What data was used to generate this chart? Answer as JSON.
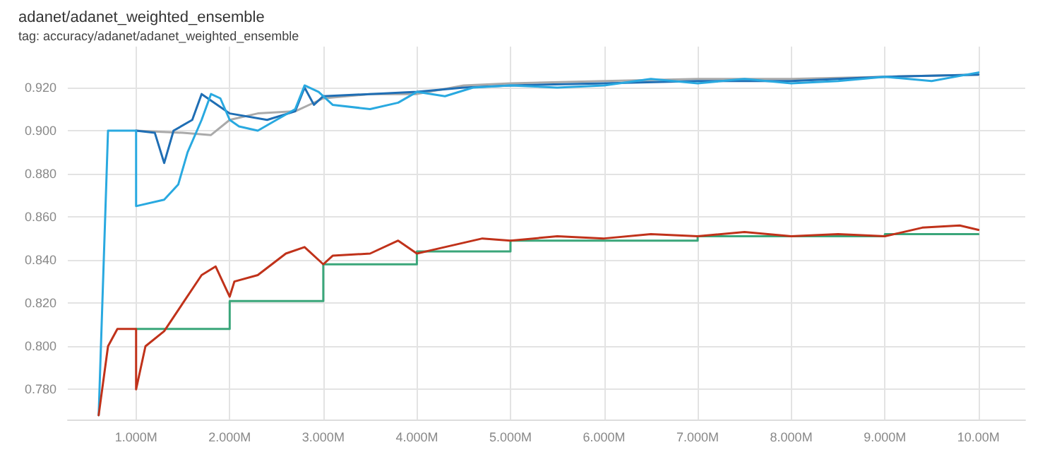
{
  "chart_data": {
    "type": "line",
    "title": "adanet/adanet_weighted_ensemble",
    "subtitle": "tag: accuracy/adanet/adanet_weighted_ensemble",
    "xlim": [
      0.27,
      10.5
    ],
    "xticks": [
      {
        "value": 1,
        "label": "1.000M"
      },
      {
        "value": 2,
        "label": "2.000M"
      },
      {
        "value": 3,
        "label": "3.000M"
      },
      {
        "value": 4,
        "label": "4.000M"
      },
      {
        "value": 5,
        "label": "5.000M"
      },
      {
        "value": 6,
        "label": "6.000M"
      },
      {
        "value": 7,
        "label": "7.000M"
      },
      {
        "value": 8,
        "label": "8.000M"
      },
      {
        "value": 9,
        "label": "9.000M"
      },
      {
        "value": 10,
        "label": "10.00M"
      }
    ],
    "ylim": [
      0.766,
      0.939
    ],
    "yticks": [
      {
        "value": 0.78,
        "label": "0.780"
      },
      {
        "value": 0.8,
        "label": "0.800"
      },
      {
        "value": 0.82,
        "label": "0.820"
      },
      {
        "value": 0.84,
        "label": "0.840"
      },
      {
        "value": 0.86,
        "label": "0.860"
      },
      {
        "value": 0.88,
        "label": "0.880"
      },
      {
        "value": 0.9,
        "label": "0.900"
      },
      {
        "value": 0.92,
        "label": "0.920"
      }
    ],
    "grid": true,
    "marker": "none",
    "line_style": "solid",
    "series": [
      {
        "color": "#aaaaaa",
        "x": [
          1.0,
          1.5,
          1.8,
          2.0,
          2.3,
          2.7,
          3.0,
          3.5,
          4.0,
          4.5,
          5.0,
          6.0,
          7.0,
          8.0,
          9.0,
          10.0
        ],
        "values": [
          0.9,
          0.899,
          0.898,
          0.905,
          0.908,
          0.909,
          0.915,
          0.917,
          0.917,
          0.921,
          0.922,
          0.923,
          0.924,
          0.924,
          0.925,
          0.926
        ]
      },
      {
        "color": "#1f6eb4",
        "x": [
          1.0,
          1.2,
          1.3,
          1.4,
          1.6,
          1.7,
          1.9,
          2.0,
          2.4,
          2.7,
          2.8,
          2.9,
          3.0,
          3.5,
          4.0,
          4.5,
          5.0,
          6.0,
          7.0,
          8.0,
          9.0,
          10.0
        ],
        "values": [
          0.9,
          0.899,
          0.885,
          0.9,
          0.905,
          0.917,
          0.911,
          0.908,
          0.905,
          0.909,
          0.92,
          0.912,
          0.916,
          0.917,
          0.918,
          0.92,
          0.921,
          0.922,
          0.923,
          0.923,
          0.925,
          0.926
        ]
      },
      {
        "color": "#29a9e0",
        "x": [
          0.6,
          0.7,
          0.8,
          1.0,
          1.0,
          1.3,
          1.45,
          1.55,
          1.7,
          1.8,
          1.9,
          2.0,
          2.1,
          2.3,
          2.5,
          2.7,
          2.8,
          2.95,
          3.1,
          3.5,
          3.8,
          4.0,
          4.3,
          4.6,
          5.0,
          5.5,
          6.0,
          6.5,
          7.0,
          7.5,
          8.0,
          8.5,
          9.0,
          9.5,
          10.0
        ],
        "values": [
          0.768,
          0.9,
          0.9,
          0.9,
          0.865,
          0.868,
          0.875,
          0.89,
          0.905,
          0.917,
          0.915,
          0.905,
          0.902,
          0.9,
          0.905,
          0.91,
          0.921,
          0.918,
          0.912,
          0.91,
          0.913,
          0.918,
          0.916,
          0.92,
          0.921,
          0.92,
          0.921,
          0.924,
          0.922,
          0.924,
          0.922,
          0.923,
          0.925,
          0.923,
          0.927
        ]
      },
      {
        "type": "step",
        "color": "#3aa67a",
        "x": [
          1,
          2,
          3,
          4,
          5,
          7,
          9,
          10
        ],
        "values": [
          0.808,
          0.821,
          0.838,
          0.844,
          0.849,
          0.851,
          0.852,
          0.852
        ]
      },
      {
        "color": "#c0321a",
        "x": [
          0.6,
          0.7,
          0.8,
          1.0,
          1.0,
          1.1,
          1.3,
          1.5,
          1.7,
          1.85,
          2.0,
          2.05,
          2.3,
          2.6,
          2.8,
          3.0,
          3.1,
          3.5,
          3.8,
          4.0,
          4.2,
          4.7,
          5.0,
          5.5,
          6.0,
          6.5,
          7.0,
          7.5,
          8.0,
          8.5,
          9.0,
          9.4,
          9.8,
          10.0
        ],
        "values": [
          0.768,
          0.8,
          0.808,
          0.808,
          0.78,
          0.8,
          0.807,
          0.82,
          0.833,
          0.837,
          0.823,
          0.83,
          0.833,
          0.843,
          0.846,
          0.838,
          0.842,
          0.843,
          0.849,
          0.843,
          0.845,
          0.85,
          0.849,
          0.851,
          0.85,
          0.852,
          0.851,
          0.853,
          0.851,
          0.852,
          0.851,
          0.855,
          0.856,
          0.854
        ]
      }
    ]
  }
}
